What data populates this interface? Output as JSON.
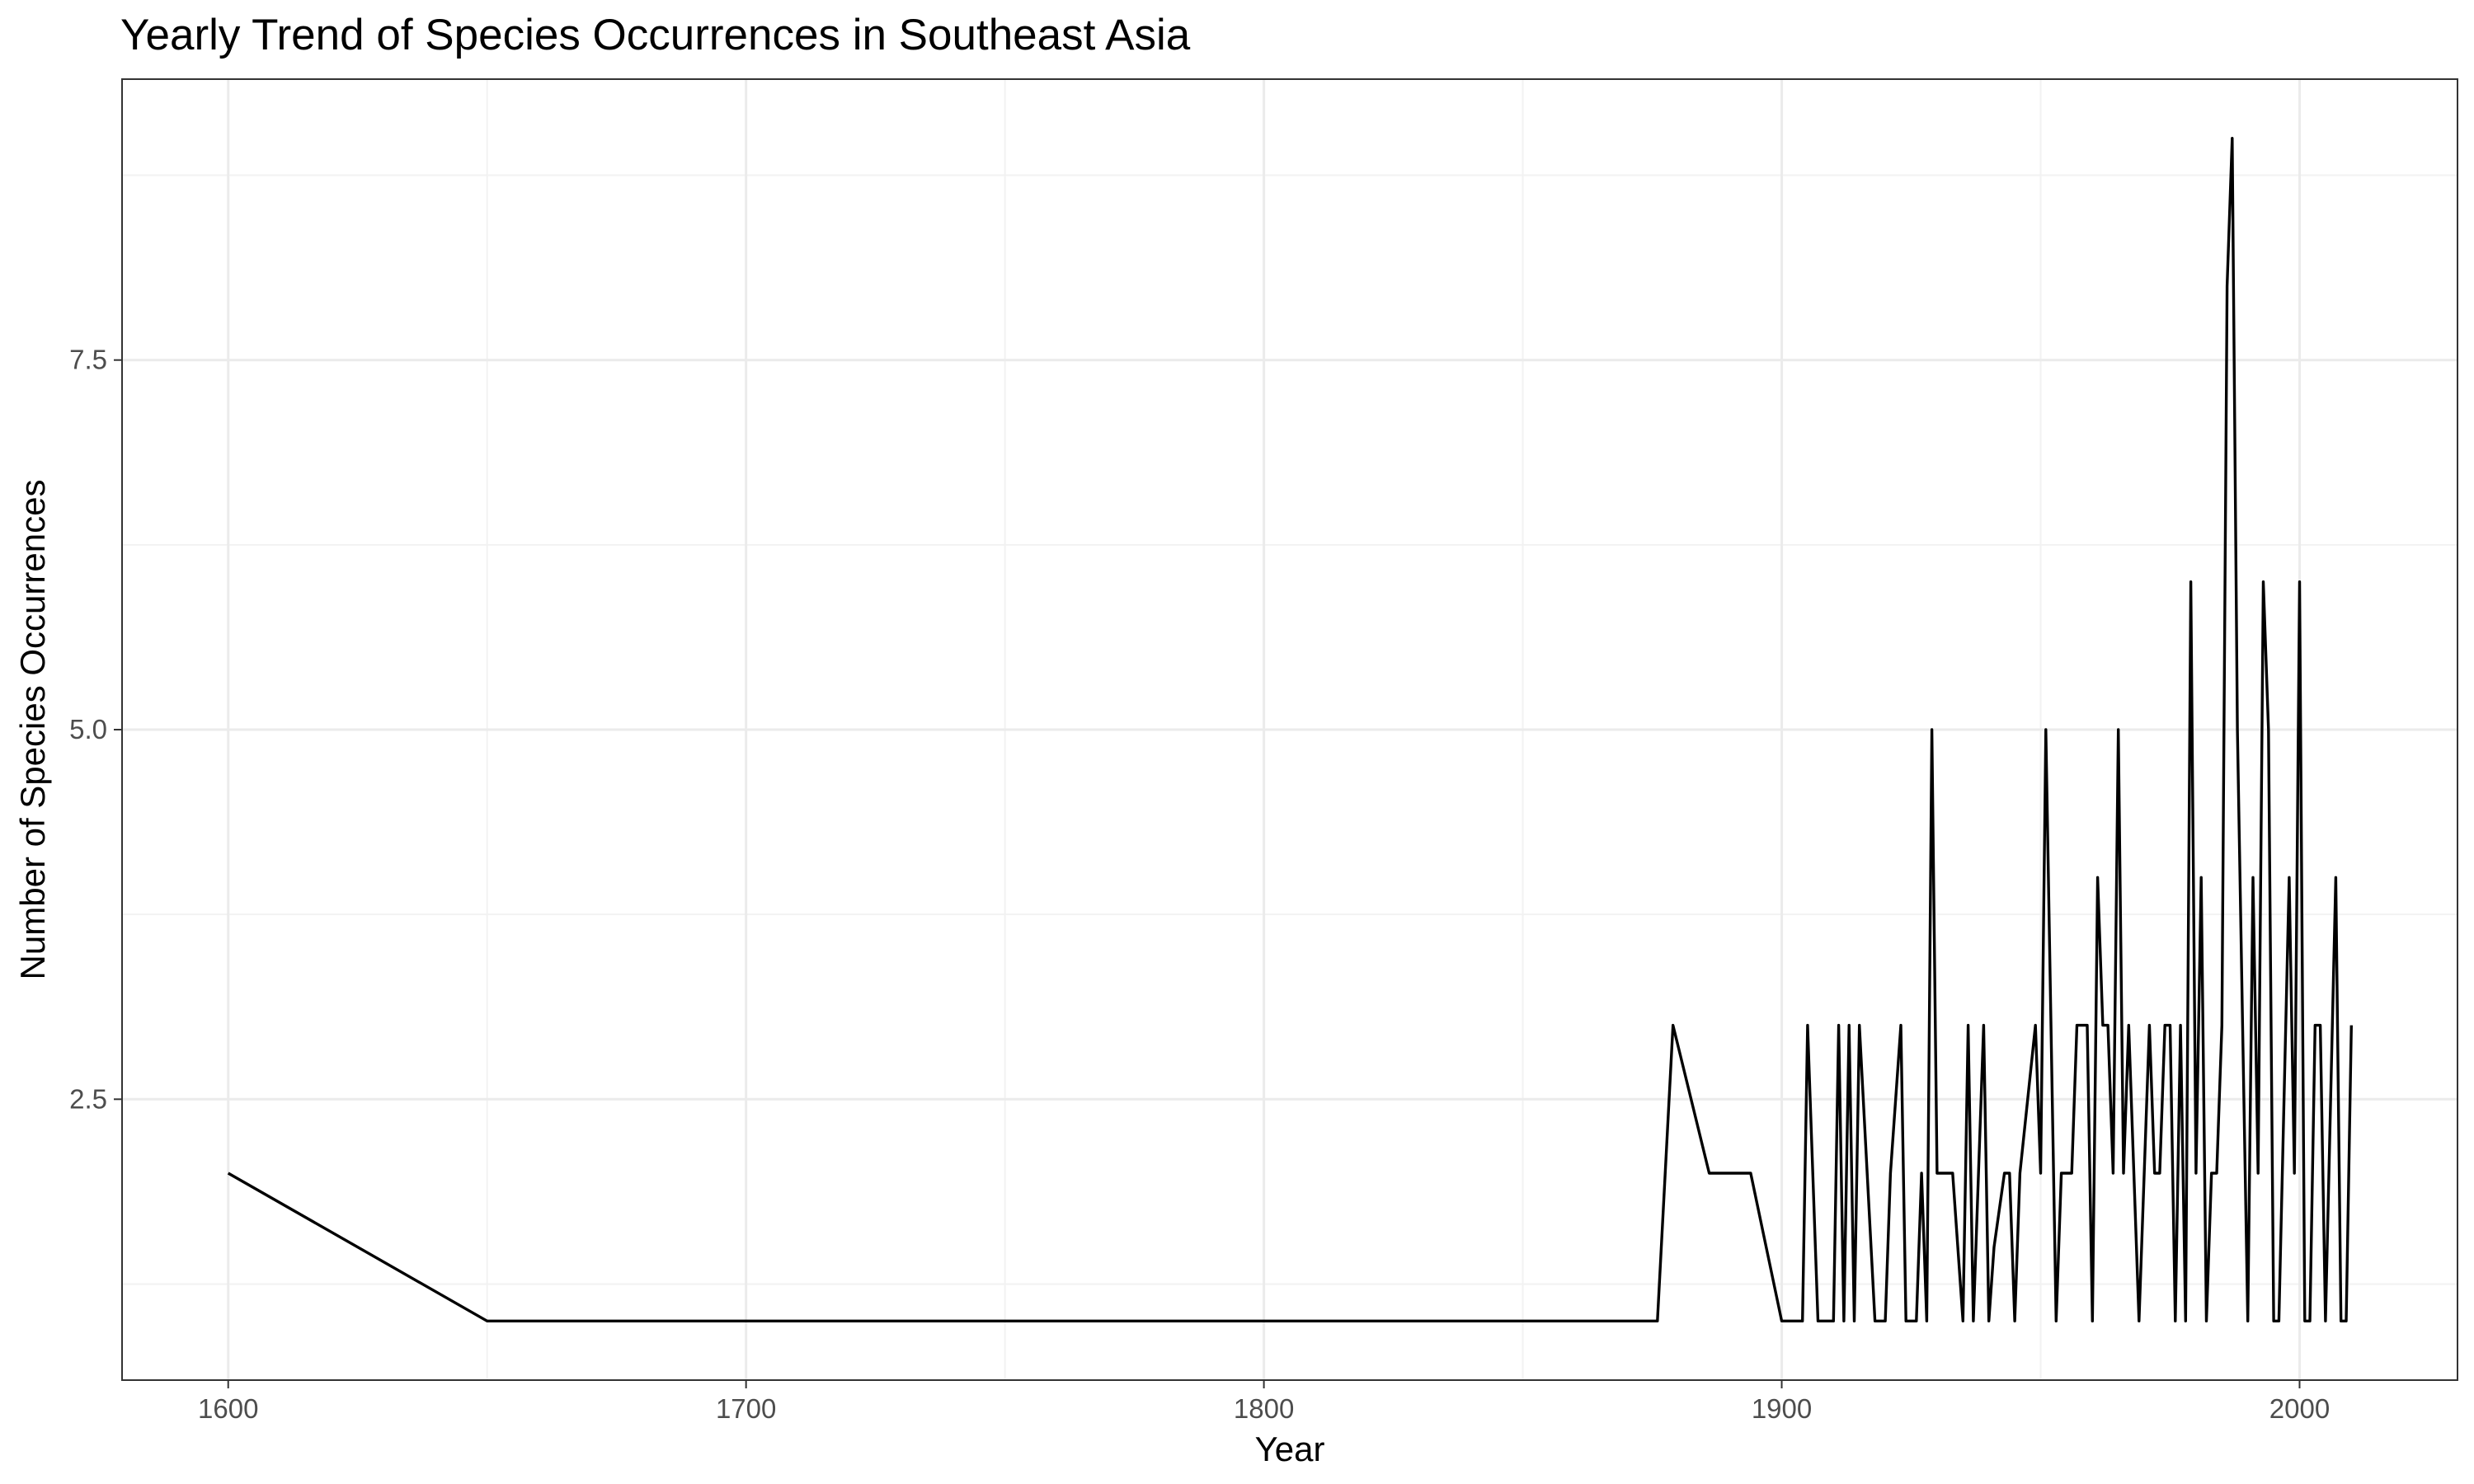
{
  "chart_data": {
    "type": "line",
    "title": "Yearly Trend of Species Occurrences in Southeast Asia",
    "xlabel": "Year",
    "ylabel": "Number of Species Occurrences",
    "xlim": [
      1579.5,
      2030.5
    ],
    "ylim": [
      0.6,
      9.4
    ],
    "x_ticks": [
      {
        "value": 1600,
        "label": "1600"
      },
      {
        "value": 1700,
        "label": "1700"
      },
      {
        "value": 1800,
        "label": "1800"
      },
      {
        "value": 1900,
        "label": "1900"
      },
      {
        "value": 2000,
        "label": "2000"
      }
    ],
    "y_ticks": [
      {
        "value": 2.5,
        "label": "2.5"
      },
      {
        "value": 5.0,
        "label": "5.0"
      },
      {
        "value": 7.5,
        "label": "7.5"
      }
    ],
    "x_minor": [
      1650,
      1750,
      1850,
      1950
    ],
    "y_minor": [
      1.25,
      3.75,
      6.25,
      8.75
    ],
    "grid": true,
    "line_color": "#000000",
    "series": [
      {
        "x": [
          1600,
          1650,
          1876,
          1879,
          1886,
          1894,
          1900,
          1904,
          1905,
          1907,
          1910,
          1911,
          1912,
          1913,
          1914,
          1915,
          1918,
          1920,
          1921,
          1923,
          1924,
          1926,
          1927,
          1928,
          1929,
          1930,
          1933,
          1935,
          1936,
          1937,
          1939,
          1940,
          1941,
          1943,
          1944,
          1945,
          1946,
          1949,
          1950,
          1951,
          1953,
          1954,
          1956,
          1957,
          1959,
          1960,
          1961,
          1962,
          1963,
          1964,
          1965,
          1966,
          1967,
          1969,
          1971,
          1972,
          1973,
          1974,
          1975,
          1976,
          1977,
          1978,
          1979,
          1980,
          1981,
          1982,
          1983,
          1984,
          1985,
          1986,
          1987,
          1988,
          1990,
          1991,
          1992,
          1993,
          1994,
          1995,
          1996,
          1998,
          1999,
          2000,
          2001,
          2002,
          2003,
          2004,
          2005,
          2007,
          2008,
          2009,
          2010
        ],
        "y": [
          2,
          1,
          1,
          3,
          2,
          2,
          1,
          1,
          3,
          1,
          1,
          3,
          1,
          3,
          1,
          3,
          1,
          1,
          2,
          3,
          1,
          1,
          2,
          1,
          5,
          2,
          2,
          1,
          3,
          1,
          3,
          1,
          1.5,
          2,
          2,
          1,
          2,
          3,
          2,
          5,
          1,
          2,
          2,
          3,
          3,
          1,
          4,
          3,
          3,
          2,
          5,
          2,
          3,
          1,
          3,
          2,
          2,
          3,
          3,
          1,
          3,
          1,
          6,
          2,
          4,
          1,
          2,
          2,
          3,
          8,
          9,
          5,
          1,
          4,
          2,
          6,
          5,
          1,
          1,
          4,
          2,
          6,
          1,
          1,
          3,
          3,
          1,
          4,
          1,
          1,
          3
        ]
      }
    ]
  },
  "colors": {
    "panel_border": "#333333",
    "major_grid": "#ebebeb",
    "minor_grid": "#f2f2f2",
    "tick_text": "#4d4d4d",
    "tick_mark": "#333333"
  }
}
